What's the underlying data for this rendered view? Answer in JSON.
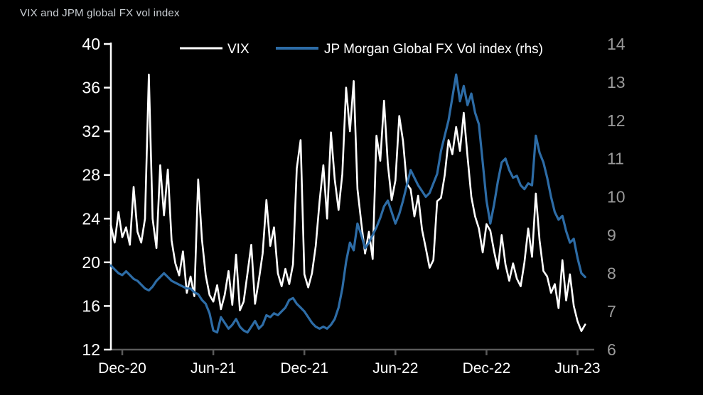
{
  "page": {
    "background": "#000000"
  },
  "header": {
    "title": "VIX and JPM global FX vol index",
    "title_color": "#c9ced3"
  },
  "legend": {
    "items": [
      {
        "label": "VIX",
        "color": "#ffffff",
        "swatch_width": 3
      },
      {
        "label": "JP Morgan Global FX Vol index (rhs)",
        "color": "#2d6ca6",
        "swatch_width": 4
      }
    ],
    "text_color": "#ffffff"
  },
  "chart_data": {
    "type": "line",
    "title": "VIX and JPM global FX vol index",
    "x_unit": "months since Dec-2020 tick",
    "x_start": -0.75,
    "x_step": 0.25,
    "x_count": 126,
    "x_range": [
      -0.75,
      31.1
    ],
    "x_axis": {
      "ticks": [
        {
          "pos": 0,
          "label": "Dec-20"
        },
        {
          "pos": 6,
          "label": "Jun-21"
        },
        {
          "pos": 12,
          "label": "Dec-21"
        },
        {
          "pos": 18,
          "label": "Jun-22"
        },
        {
          "pos": 24,
          "label": "Dec-22"
        },
        {
          "pos": 30,
          "label": "Jun-23"
        }
      ],
      "line_color": "#5a5a5a",
      "label_color": "#ffffff"
    },
    "left_axis": {
      "min": 12,
      "max": 40,
      "ticks": [
        40,
        36,
        32,
        28,
        24,
        20,
        16,
        12
      ],
      "color": "#ffffff",
      "grid": false
    },
    "right_axis": {
      "min": 6,
      "max": 14,
      "ticks": [
        14,
        13,
        12,
        11,
        10,
        9,
        8,
        7,
        6
      ],
      "color": "#9a9a9a",
      "grid": false
    },
    "series": [
      {
        "name": "VIX",
        "axis": "left",
        "color": "#ffffff",
        "stroke_width": 2.6,
        "values": [
          23.4,
          21.8,
          24.6,
          22.3,
          23.2,
          21.6,
          26.9,
          22.8,
          21.8,
          24.0,
          37.2,
          24.0,
          21.3,
          28.9,
          24.3,
          28.5,
          22.0,
          19.9,
          18.8,
          21.0,
          17.2,
          18.7,
          16.9,
          27.6,
          22.1,
          18.8,
          17.0,
          16.4,
          17.9,
          15.7,
          17.0,
          19.2,
          16.1,
          20.7,
          15.6,
          16.4,
          19.0,
          21.6,
          16.2,
          18.4,
          20.8,
          25.7,
          21.5,
          23.2,
          19.0,
          17.8,
          19.4,
          18.0,
          19.8,
          28.6,
          31.2,
          18.9,
          17.7,
          19.0,
          21.5,
          25.6,
          28.9,
          24.0,
          31.9,
          27.6,
          24.8,
          28.1,
          36.0,
          32.0,
          36.6,
          26.7,
          23.6,
          20.8,
          22.8,
          20.3,
          31.6,
          29.3,
          34.8,
          29.0,
          25.7,
          27.5,
          33.4,
          31.1,
          27.2,
          26.7,
          24.2,
          26.1,
          23.0,
          21.3,
          19.5,
          20.2,
          25.6,
          25.9,
          28.0,
          31.2,
          29.9,
          32.4,
          30.2,
          33.7,
          29.7,
          26.0,
          24.2,
          23.1,
          20.9,
          23.5,
          22.9,
          21.0,
          19.4,
          22.5,
          19.8,
          18.3,
          19.9,
          18.5,
          17.8,
          20.0,
          23.1,
          20.5,
          26.3,
          22.0,
          19.2,
          18.7,
          17.2,
          18.0,
          15.8,
          20.2,
          16.5,
          18.9,
          16.0,
          14.6,
          13.7,
          14.3
        ]
      },
      {
        "name": "JP Morgan Global FX Vol index (rhs)",
        "axis": "right",
        "color": "#2d6ca6",
        "stroke_width": 3.2,
        "values": [
          8.2,
          8.1,
          8.0,
          7.95,
          8.05,
          7.95,
          7.85,
          7.8,
          7.7,
          7.6,
          7.55,
          7.65,
          7.8,
          7.9,
          8.0,
          7.9,
          7.8,
          7.75,
          7.7,
          7.65,
          7.6,
          7.6,
          7.5,
          7.45,
          7.3,
          7.2,
          6.95,
          6.5,
          6.45,
          6.85,
          6.7,
          6.55,
          6.65,
          6.8,
          6.6,
          6.5,
          6.45,
          6.6,
          6.75,
          6.55,
          6.65,
          6.9,
          6.85,
          6.95,
          6.9,
          7.0,
          7.1,
          7.3,
          7.35,
          7.2,
          7.1,
          7.0,
          6.85,
          6.7,
          6.6,
          6.55,
          6.6,
          6.55,
          6.65,
          6.8,
          7.1,
          7.6,
          8.3,
          8.8,
          8.6,
          9.3,
          9.0,
          8.65,
          8.8,
          9.0,
          9.2,
          9.45,
          9.75,
          9.9,
          9.6,
          9.3,
          9.55,
          9.9,
          10.3,
          10.7,
          10.5,
          10.3,
          10.15,
          10.0,
          10.1,
          10.35,
          10.6,
          11.2,
          11.6,
          12.0,
          12.6,
          13.2,
          12.5,
          12.9,
          12.4,
          12.7,
          12.2,
          11.9,
          10.9,
          9.9,
          9.3,
          9.8,
          10.4,
          10.9,
          11.0,
          10.7,
          10.5,
          10.55,
          10.3,
          10.2,
          10.35,
          10.3,
          11.6,
          11.15,
          10.9,
          10.5,
          10.0,
          9.6,
          9.4,
          9.5,
          9.1,
          8.8,
          8.9,
          8.4,
          8.0,
          7.9
        ]
      }
    ]
  }
}
